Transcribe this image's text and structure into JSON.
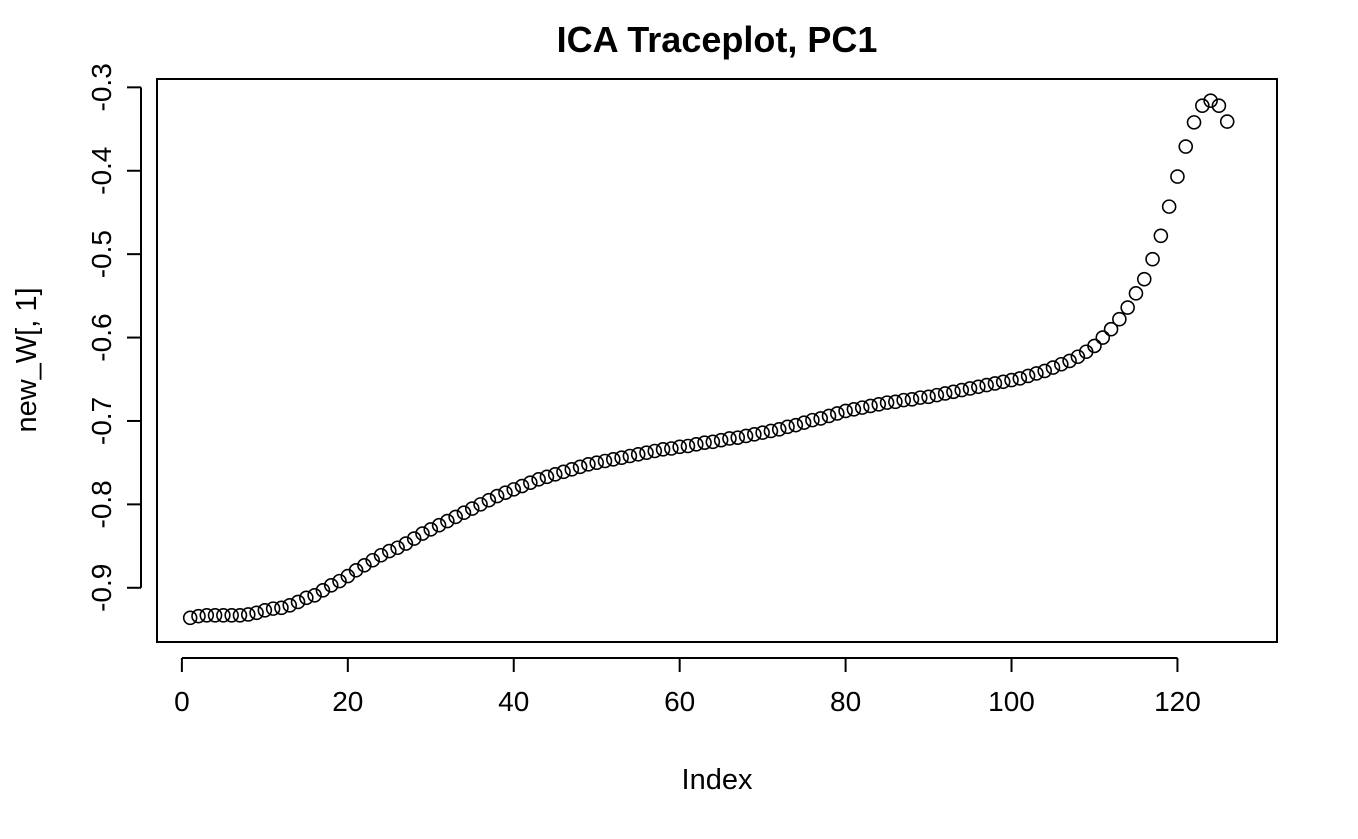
{
  "chart_data": {
    "type": "scatter",
    "title": "ICA Traceplot, PC1",
    "xlabel": "Index",
    "ylabel": "new_W[, 1]",
    "xlim": [
      -3,
      132
    ],
    "ylim": [
      -0.965,
      -0.29
    ],
    "xticks": [
      0,
      20,
      40,
      60,
      80,
      100,
      120
    ],
    "yticks": [
      -0.9,
      -0.8,
      -0.7,
      -0.6,
      -0.5,
      -0.4,
      -0.3
    ],
    "x_tick_labels": [
      "0",
      "20",
      "40",
      "60",
      "80",
      "100",
      "120"
    ],
    "y_tick_labels": [
      "-0.9",
      "-0.8",
      "-0.7",
      "-0.6",
      "-0.5",
      "-0.4",
      "-0.3"
    ],
    "grid": false,
    "marker": "open-circle",
    "x": [
      1,
      2,
      3,
      4,
      5,
      6,
      7,
      8,
      9,
      10,
      11,
      12,
      13,
      14,
      15,
      16,
      17,
      18,
      19,
      20,
      21,
      22,
      23,
      24,
      25,
      26,
      27,
      28,
      29,
      30,
      31,
      32,
      33,
      34,
      35,
      36,
      37,
      38,
      39,
      40,
      41,
      42,
      43,
      44,
      45,
      46,
      47,
      48,
      49,
      50,
      51,
      52,
      53,
      54,
      55,
      56,
      57,
      58,
      59,
      60,
      61,
      62,
      63,
      64,
      65,
      66,
      67,
      68,
      69,
      70,
      71,
      72,
      73,
      74,
      75,
      76,
      77,
      78,
      79,
      80,
      81,
      82,
      83,
      84,
      85,
      86,
      87,
      88,
      89,
      90,
      91,
      92,
      93,
      94,
      95,
      96,
      97,
      98,
      99,
      100,
      101,
      102,
      103,
      104,
      105,
      106,
      107,
      108,
      109,
      110,
      111,
      112,
      113,
      114,
      115,
      116,
      117,
      118,
      119,
      120,
      121,
      122,
      123,
      124,
      125,
      126
    ],
    "values": [
      -0.936,
      -0.934,
      -0.933,
      -0.933,
      -0.933,
      -0.933,
      -0.933,
      -0.932,
      -0.93,
      -0.927,
      -0.925,
      -0.924,
      -0.921,
      -0.917,
      -0.912,
      -0.909,
      -0.903,
      -0.897,
      -0.892,
      -0.886,
      -0.879,
      -0.873,
      -0.867,
      -0.861,
      -0.856,
      -0.852,
      -0.847,
      -0.841,
      -0.835,
      -0.83,
      -0.825,
      -0.82,
      -0.815,
      -0.81,
      -0.805,
      -0.8,
      -0.795,
      -0.79,
      -0.786,
      -0.782,
      -0.778,
      -0.774,
      -0.77,
      -0.767,
      -0.764,
      -0.761,
      -0.758,
      -0.755,
      -0.752,
      -0.75,
      -0.748,
      -0.746,
      -0.744,
      -0.742,
      -0.74,
      -0.738,
      -0.736,
      -0.734,
      -0.733,
      -0.731,
      -0.73,
      -0.728,
      -0.726,
      -0.725,
      -0.723,
      -0.721,
      -0.72,
      -0.718,
      -0.716,
      -0.714,
      -0.712,
      -0.71,
      -0.707,
      -0.705,
      -0.702,
      -0.699,
      -0.697,
      -0.694,
      -0.691,
      -0.688,
      -0.686,
      -0.684,
      -0.682,
      -0.68,
      -0.678,
      -0.677,
      -0.675,
      -0.674,
      -0.672,
      -0.671,
      -0.669,
      -0.667,
      -0.665,
      -0.663,
      -0.661,
      -0.659,
      -0.657,
      -0.655,
      -0.653,
      -0.651,
      -0.649,
      -0.646,
      -0.643,
      -0.64,
      -0.636,
      -0.632,
      -0.628,
      -0.623,
      -0.617,
      -0.61,
      -0.6,
      -0.59,
      -0.578,
      -0.564,
      -0.547,
      -0.53,
      -0.506,
      -0.478,
      -0.443,
      -0.407,
      -0.371,
      -0.342,
      -0.322,
      -0.316,
      -0.322,
      -0.341
    ]
  }
}
